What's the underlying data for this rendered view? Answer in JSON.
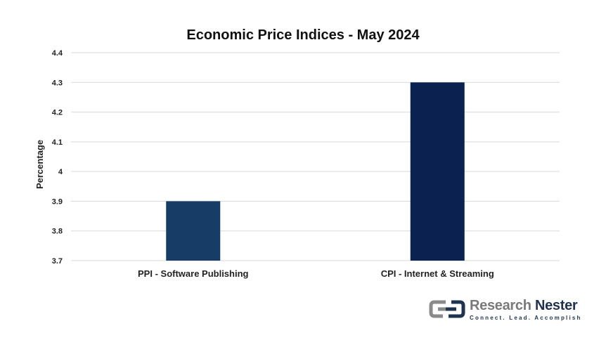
{
  "chart_data": {
    "type": "bar",
    "title": "Economic Price Indices - May 2024",
    "xlabel": "",
    "ylabel": "Percentage",
    "categories": [
      "PPI - Software Publishing",
      "CPI - Internet & Streaming"
    ],
    "values": [
      3.9,
      4.3
    ],
    "bar_colors": [
      "#173d66",
      "#0b2150"
    ],
    "ylim": [
      3.7,
      4.4
    ],
    "yticks": [
      "3.7",
      "3.8",
      "3.9",
      "4",
      "4.1",
      "4.2",
      "4.3",
      "4.4"
    ],
    "grid": true,
    "legend": "none"
  },
  "branding": {
    "name_part1": "Research",
    "name_part2": "Nester",
    "tagline": "Connect. Lead. Accomplish",
    "icon": "research-nester-logo-mark"
  }
}
